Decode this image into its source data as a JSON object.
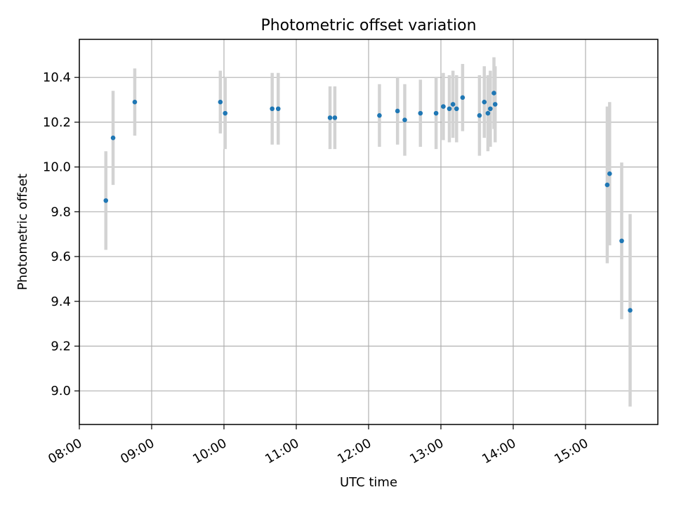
{
  "colors": {
    "point": "#1f77b4",
    "errorbar": "#d3d3d3",
    "grid": "#b0b0b0",
    "frame": "#000000"
  },
  "chart_data": {
    "type": "scatter",
    "title": "Photometric offset variation",
    "xlabel": "UTC time",
    "ylabel": "Photometric offset",
    "x_format": "HH:MM",
    "xlim": [
      "08:00",
      "16:00"
    ],
    "ylim": [
      8.85,
      10.57
    ],
    "grid": true,
    "legend": "none",
    "x_ticks": [
      "08:00",
      "09:00",
      "10:00",
      "11:00",
      "12:00",
      "13:00",
      "14:00",
      "15:00"
    ],
    "y_ticks": [
      9.0,
      9.2,
      9.4,
      9.6,
      9.8,
      10.0,
      10.2,
      10.4
    ],
    "y_tick_labels": [
      "9.0",
      "9.2",
      "9.4",
      "9.6",
      "9.8",
      "10.0",
      "10.2",
      "10.4"
    ],
    "series": [
      {
        "marker": "point",
        "points": [
          {
            "x": "08:22",
            "y": 9.85,
            "err": 0.22
          },
          {
            "x": "08:28",
            "y": 10.13,
            "err": 0.21
          },
          {
            "x": "08:46",
            "y": 10.29,
            "err": 0.15
          },
          {
            "x": "09:57",
            "y": 10.29,
            "err": 0.14
          },
          {
            "x": "10:01",
            "y": 10.24,
            "err": 0.16
          },
          {
            "x": "10:40",
            "y": 10.26,
            "err": 0.16
          },
          {
            "x": "10:45",
            "y": 10.26,
            "err": 0.16
          },
          {
            "x": "11:28",
            "y": 10.22,
            "err": 0.14
          },
          {
            "x": "11:32",
            "y": 10.22,
            "err": 0.14
          },
          {
            "x": "12:09",
            "y": 10.23,
            "err": 0.14
          },
          {
            "x": "12:24",
            "y": 10.25,
            "err": 0.15
          },
          {
            "x": "12:30",
            "y": 10.21,
            "err": 0.16
          },
          {
            "x": "12:43",
            "y": 10.24,
            "err": 0.15
          },
          {
            "x": "12:56",
            "y": 10.24,
            "err": 0.16
          },
          {
            "x": "13:02",
            "y": 10.27,
            "err": 0.15
          },
          {
            "x": "13:07",
            "y": 10.26,
            "err": 0.15
          },
          {
            "x": "13:10",
            "y": 10.28,
            "err": 0.15
          },
          {
            "x": "13:13",
            "y": 10.26,
            "err": 0.15
          },
          {
            "x": "13:18",
            "y": 10.31,
            "err": 0.15
          },
          {
            "x": "13:32",
            "y": 10.23,
            "err": 0.18
          },
          {
            "x": "13:36",
            "y": 10.29,
            "err": 0.16
          },
          {
            "x": "13:39",
            "y": 10.24,
            "err": 0.17
          },
          {
            "x": "13:41",
            "y": 10.26,
            "err": 0.17
          },
          {
            "x": "13:44",
            "y": 10.33,
            "err": 0.16
          },
          {
            "x": "13:45",
            "y": 10.28,
            "err": 0.17
          },
          {
            "x": "15:18",
            "y": 9.92,
            "err": 0.35
          },
          {
            "x": "15:20",
            "y": 9.97,
            "err": 0.32
          },
          {
            "x": "15:30",
            "y": 9.67,
            "err": 0.35
          },
          {
            "x": "15:37",
            "y": 9.36,
            "err": 0.43
          }
        ]
      }
    ]
  }
}
